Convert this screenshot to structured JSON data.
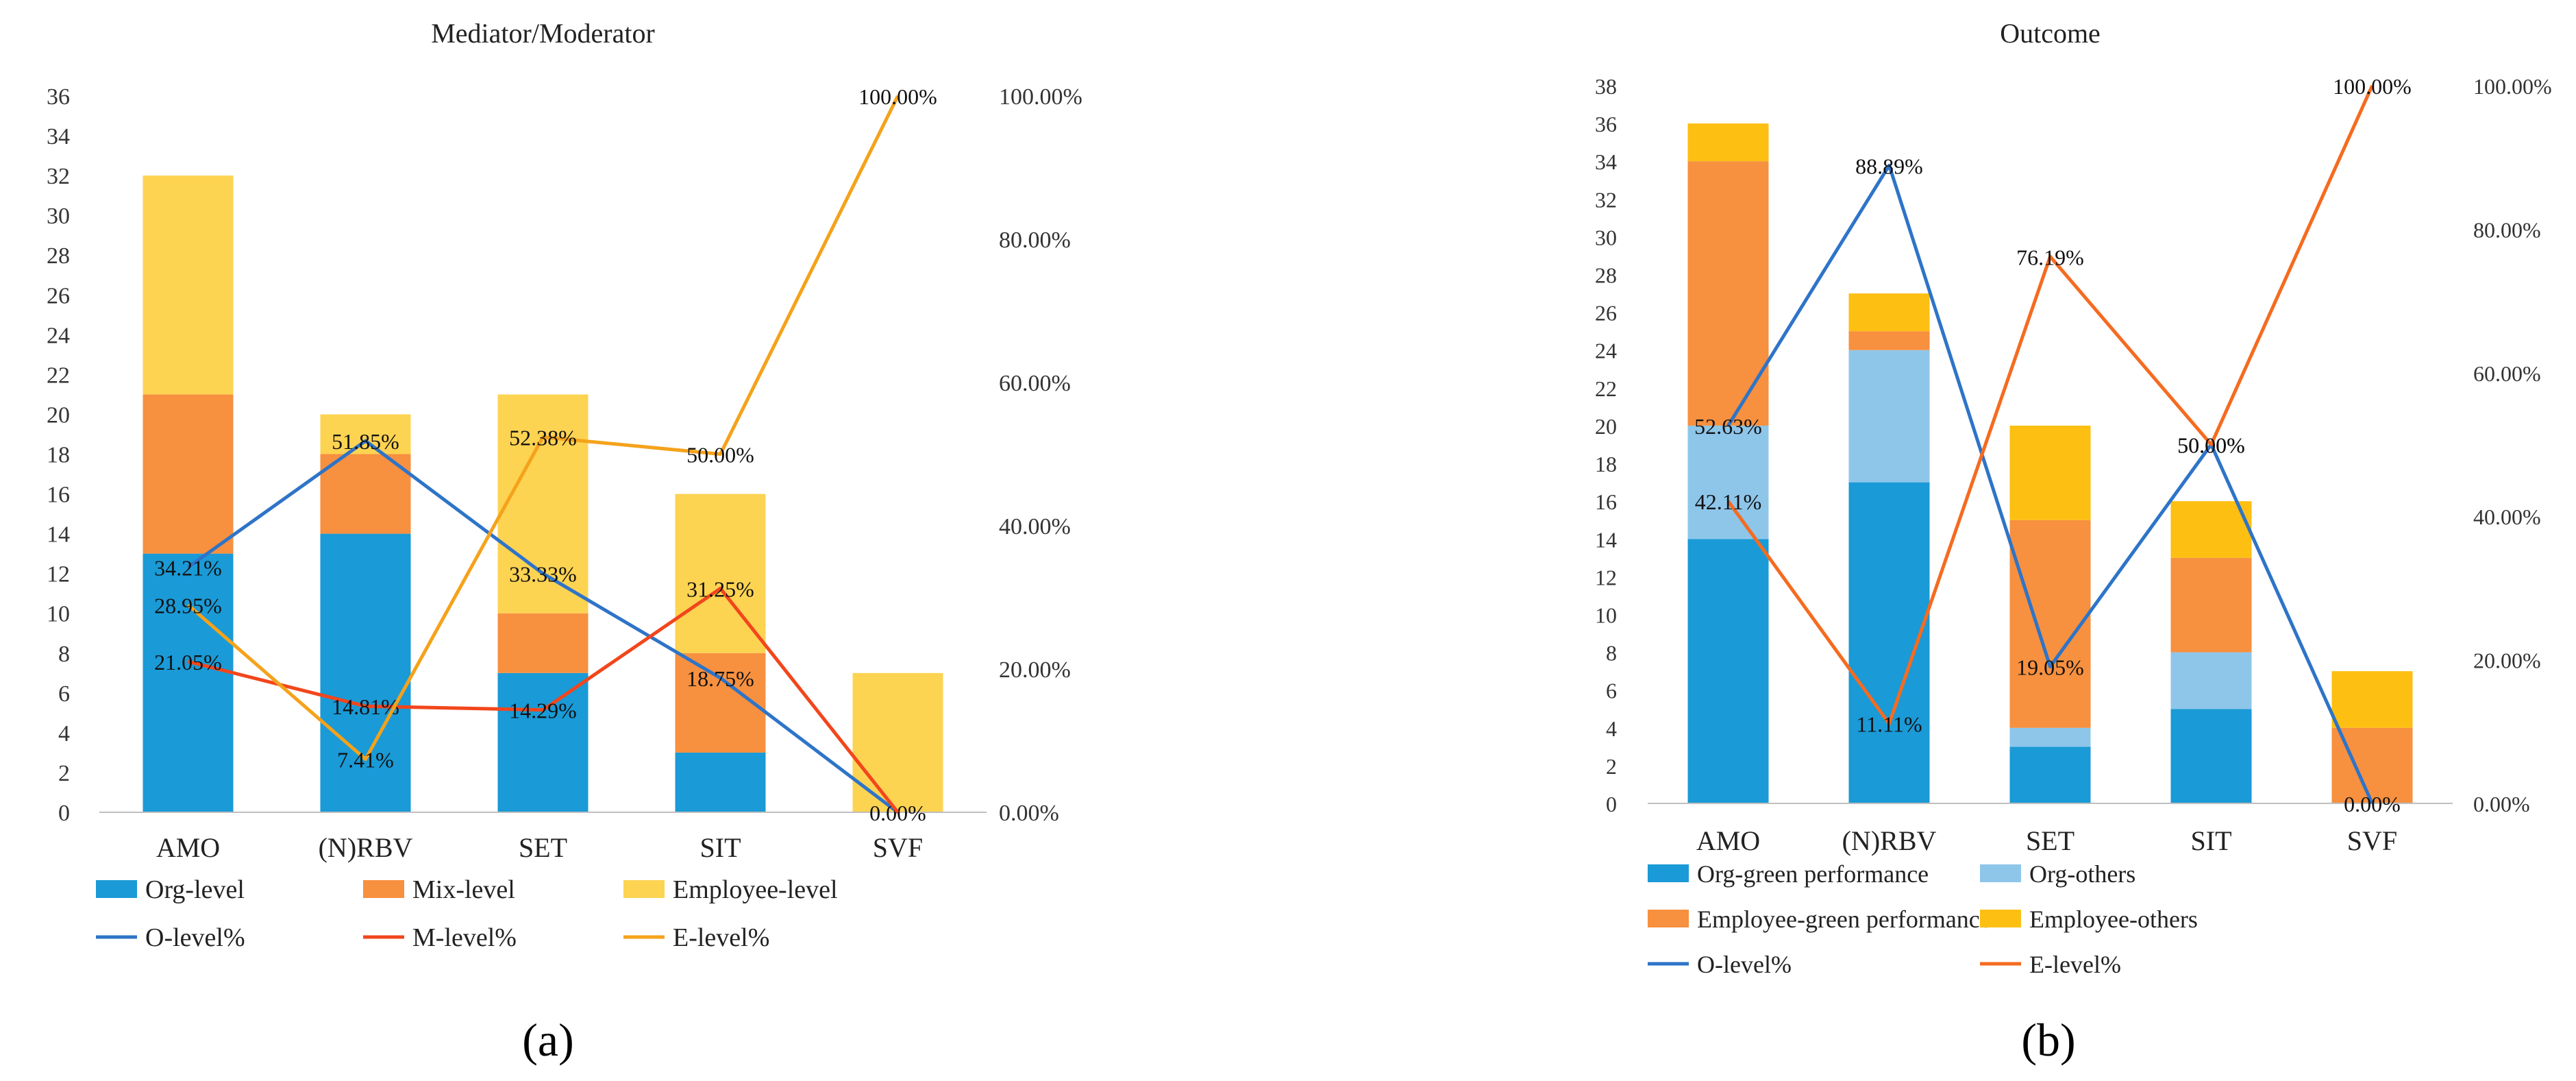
{
  "colors": {
    "org_level": "#1a9ad6",
    "mix_level": "#f7903f",
    "employee_level_a": "#fdd352",
    "org_green": "#1a9ad6",
    "org_others": "#8ec6ea",
    "emp_green": "#f7903f",
    "emp_others": "#fdbf12",
    "o_line": "#2e74c8",
    "m_line": "#f2461c",
    "e_line_a": "#f5a21b",
    "e_line_b": "#f56b20"
  },
  "panel_a": {
    "caption": "(a)"
  },
  "panel_b": {
    "caption": "(b)"
  },
  "chart_data": [
    {
      "type": "bar",
      "stacked": true,
      "title": "Mediator/Moderator",
      "categories": [
        "AMO",
        "(N)RBV",
        "SET",
        "SIT",
        "SVF"
      ],
      "ylim": [
        0,
        36
      ],
      "yticks": [
        0,
        2,
        4,
        6,
        8,
        10,
        12,
        14,
        16,
        18,
        20,
        22,
        24,
        26,
        28,
        30,
        32,
        34,
        36
      ],
      "y2lim": [
        0,
        100
      ],
      "y2ticks": [
        "0.00%",
        "20.00%",
        "40.00%",
        "60.00%",
        "80.00%",
        "100.00%"
      ],
      "series": [
        {
          "name": "Org-level",
          "values": [
            13,
            14,
            7,
            3,
            0
          ],
          "color_key": "org_level"
        },
        {
          "name": "Mix-level",
          "values": [
            8,
            4,
            3,
            5,
            0
          ],
          "color_key": "mix_level"
        },
        {
          "name": "Employee-level",
          "values": [
            11,
            2,
            11,
            8,
            7
          ],
          "color_key": "employee_level_a"
        }
      ],
      "lines": [
        {
          "name": "O-level%",
          "values": [
            34.21,
            51.85,
            33.33,
            18.75,
            0.0
          ],
          "labels": [
            "34.21%",
            "51.85%",
            "33.33%",
            "18.75%",
            "0.00%"
          ],
          "color_key": "o_line"
        },
        {
          "name": "M-level%",
          "values": [
            21.05,
            14.81,
            14.29,
            31.25,
            0.0
          ],
          "labels": [
            "21.05%",
            "14.81%",
            "14.29%",
            "31.25%",
            ""
          ],
          "color_key": "m_line"
        },
        {
          "name": "E-level%",
          "values": [
            28.95,
            7.41,
            52.38,
            50.0,
            100.0
          ],
          "labels": [
            "28.95%",
            "7.41%",
            "52.38%",
            "50.00%",
            "100.00%"
          ],
          "color_key": "e_line_a"
        }
      ],
      "legend": [
        "Org-level",
        "Mix-level",
        "Employee-level",
        "O-level%",
        "M-level%",
        "E-level%"
      ],
      "legend_position": "bottom"
    },
    {
      "type": "bar",
      "stacked": true,
      "title": "Outcome",
      "categories": [
        "AMO",
        "(N)RBV",
        "SET",
        "SIT",
        "SVF"
      ],
      "ylim": [
        0,
        38
      ],
      "yticks": [
        0,
        2,
        4,
        6,
        8,
        10,
        12,
        14,
        16,
        18,
        20,
        22,
        24,
        26,
        28,
        30,
        32,
        34,
        36,
        38
      ],
      "y2lim": [
        0,
        100
      ],
      "y2ticks": [
        "0.00%",
        "20.00%",
        "40.00%",
        "60.00%",
        "80.00%",
        "100.00%"
      ],
      "series": [
        {
          "name": "Org-green performance",
          "values": [
            14,
            17,
            3,
            5,
            0
          ],
          "color_key": "org_green"
        },
        {
          "name": "Org-others",
          "values": [
            6,
            7,
            1,
            3,
            0
          ],
          "color_key": "org_others"
        },
        {
          "name": "Employee-green performance",
          "values": [
            14,
            1,
            11,
            5,
            4
          ],
          "color_key": "emp_green"
        },
        {
          "name": "Employee-others",
          "values": [
            2,
            2,
            5,
            3,
            3
          ],
          "color_key": "emp_others"
        }
      ],
      "lines": [
        {
          "name": "O-level%",
          "values": [
            52.63,
            88.89,
            19.05,
            50.0,
            0.0
          ],
          "labels": [
            "52.63%",
            "88.89%",
            "19.05%",
            "50.00%",
            "0.00%"
          ],
          "color_key": "o_line"
        },
        {
          "name": "E-level%",
          "values": [
            42.11,
            11.11,
            76.19,
            50.0,
            100.0
          ],
          "labels": [
            "42.11%",
            "11.11%",
            "76.19%",
            "50.00%",
            "100.00%"
          ],
          "color_key": "e_line_b"
        }
      ],
      "legend": [
        "Org-green performance",
        "Org-others",
        "Employee-green performance",
        "Employee-others",
        "O-level%",
        "E-level%"
      ],
      "legend_position": "bottom"
    }
  ]
}
